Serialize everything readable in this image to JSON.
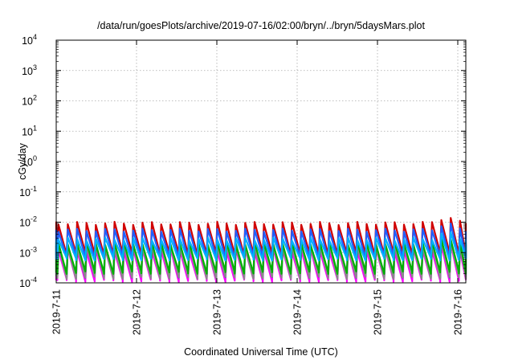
{
  "chart_data": {
    "type": "line",
    "title": "/data/run/goesPlots/archive/2019-07-16/02:00/bryn/../bryn/5daysMars.plot",
    "xlabel": "Coordinated Universal Time (UTC)",
    "ylabel": "cGy/day",
    "yscale": "log",
    "ylim": [
      0.0001,
      10000
    ],
    "xlim_days": [
      0,
      5.1
    ],
    "grid": true,
    "x_ticks": [
      "2019-7-11",
      "2019-7-12",
      "2019-7-13",
      "2019-7-14",
      "2019-7-15",
      "2019-7-16"
    ],
    "y_ticks": [
      {
        "base": "10",
        "exp": "-4"
      },
      {
        "base": "10",
        "exp": "-3"
      },
      {
        "base": "10",
        "exp": "-2"
      },
      {
        "base": "10",
        "exp": "-1"
      },
      {
        "base": "10",
        "exp": "0"
      },
      {
        "base": "10",
        "exp": "1"
      },
      {
        "base": "10",
        "exp": "2"
      },
      {
        "base": "10",
        "exp": "3"
      },
      {
        "base": "10",
        "exp": "4"
      }
    ],
    "pattern": {
      "cycles_per_day": 8.6,
      "spike_day": 4.86,
      "spike_factor": 1.6
    },
    "series": [
      {
        "color": "#ff00ff",
        "peak": 0.0012,
        "trough": 0.00012
      },
      {
        "color": "#1f8f8f",
        "peak": 0.0018,
        "trough": 0.00016
      },
      {
        "color": "#8a8a8a",
        "peak": 0.0016,
        "trough": 0.00015
      },
      {
        "color": "#00b000",
        "peak": 0.002,
        "trough": 0.00022
      },
      {
        "color": "#d00000",
        "peak": 0.0092,
        "trough": 0.0009
      },
      {
        "color": "#2060ff",
        "peak": 0.0055,
        "trough": 0.0007
      },
      {
        "color": "#00b0ff",
        "peak": 0.0028,
        "trough": 0.0006
      }
    ]
  }
}
